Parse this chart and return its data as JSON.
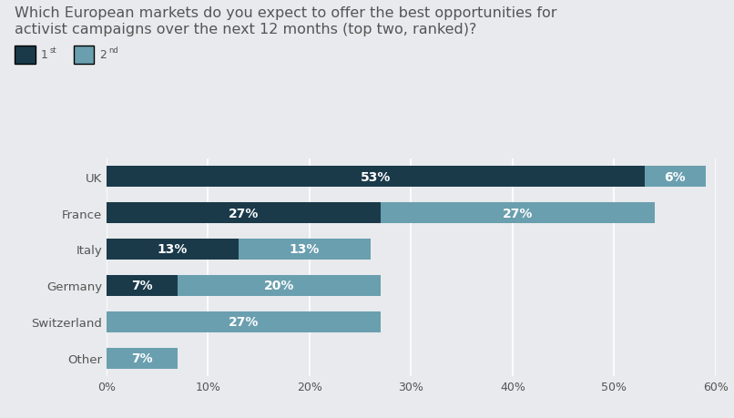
{
  "title_line1": "Which European markets do you expect to offer the best opportunities for",
  "title_line2": "activist campaigns over the next 12 months (top two, ranked)?",
  "categories": [
    "UK",
    "France",
    "Italy",
    "Germany",
    "Switzerland",
    "Other"
  ],
  "first_values": [
    53,
    27,
    13,
    7,
    0,
    0
  ],
  "second_values": [
    6,
    27,
    13,
    20,
    27,
    7
  ],
  "first_color": "#1a3a4a",
  "second_color": "#6a9faf",
  "background_color": "#e8eaed",
  "text_color": "#555555",
  "bar_height": 0.58,
  "xlim": [
    0,
    60
  ],
  "xtick_labels": [
    "0%",
    "10%",
    "20%",
    "30%",
    "40%",
    "50%",
    "60%"
  ],
  "xtick_values": [
    0,
    10,
    20,
    30,
    40,
    50,
    60
  ],
  "legend_first": "1",
  "legend_second": "2",
  "title_fontsize": 11.5,
  "label_fontsize": 10,
  "tick_fontsize": 9,
  "ytick_fontsize": 9.5
}
